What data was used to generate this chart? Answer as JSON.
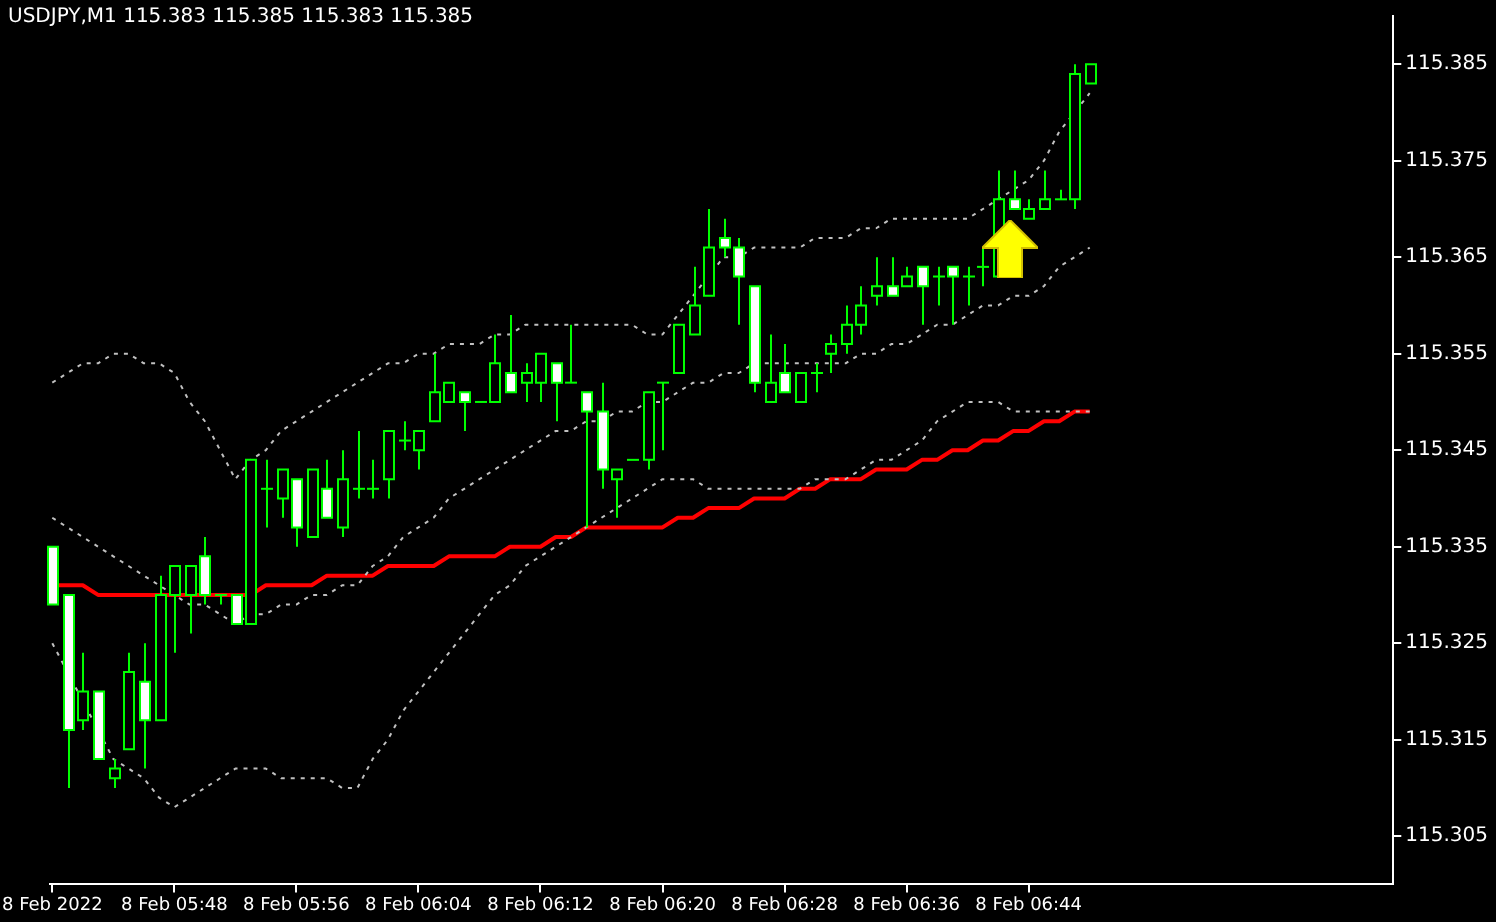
{
  "chart_data": {
    "type": "candlestick",
    "title": "USDJPY,M1 115.383 115.385 115.383 115.385",
    "categories": [
      "8 Feb 2022",
      null,
      null,
      null,
      null,
      null,
      null,
      null,
      "8 Feb 05:48",
      null,
      null,
      null,
      null,
      null,
      null,
      null,
      "8 Feb 05:56",
      null,
      null,
      null,
      null,
      null,
      null,
      null,
      "8 Feb 06:04",
      null,
      null,
      null,
      null,
      null,
      null,
      null,
      "8 Feb 06:12",
      null,
      null,
      null,
      null,
      null,
      null,
      null,
      "8 Feb 06:20",
      null,
      null,
      null,
      null,
      null,
      null,
      null,
      "8 Feb 06:28",
      null,
      null,
      null,
      null,
      null,
      null,
      null,
      "8 Feb 06:36",
      null,
      null,
      null,
      null,
      null,
      null,
      null,
      "8 Feb 06:44",
      null,
      null,
      null,
      null
    ],
    "color": "#00ff00",
    "colors": [
      "#ffffff",
      "#ffffff",
      "#000000",
      "#ffffff",
      "#000000",
      "#000000",
      "#ffffff",
      "#000000",
      "#000000",
      "#000000",
      "#ffffff",
      "#00ff00",
      "#ffffff",
      "#000000",
      "#00ff00",
      "#000000",
      "#ffffff",
      "#000000",
      "#ffffff",
      "#000000",
      "#00ff00",
      "#00ff00",
      "#000000",
      "#00ff00",
      "#000000",
      "#000000",
      "#000000",
      "#ffffff",
      "#00ff00",
      "#000000",
      "#ffffff",
      "#000000",
      "#000000",
      "#ffffff",
      "#00ff00",
      "#ffffff",
      "#ffffff",
      "#000000",
      "#00ff00",
      "#000000",
      "#00ff00",
      "#000000",
      "#000000",
      "#000000",
      "#ffffff",
      "#ffffff",
      "#ffffff",
      "#000000",
      "#ffffff",
      "#000000",
      "#00ff00",
      "#000000",
      "#000000",
      "#000000",
      "#000000",
      "#ffffff",
      "#000000",
      "#ffffff",
      "#00ff00",
      "#ffffff",
      "#00ff00",
      "#00ff00",
      "#000000",
      "#ffffff",
      "#000000",
      "#000000",
      "#00ff00",
      "#000000",
      "#000000"
    ],
    "ohlc": [
      [
        115.335,
        115.335,
        115.329,
        115.329
      ],
      [
        115.33,
        115.33,
        115.31,
        115.316
      ],
      [
        115.317,
        115.324,
        115.316,
        115.32
      ],
      [
        115.32,
        115.32,
        115.313,
        115.313
      ],
      [
        115.311,
        115.313,
        115.31,
        115.312
      ],
      [
        115.314,
        115.324,
        115.314,
        115.322
      ],
      [
        115.321,
        115.325,
        115.312,
        115.317
      ],
      [
        115.317,
        115.332,
        115.317,
        115.33
      ],
      [
        115.33,
        115.333,
        115.324,
        115.333
      ],
      [
        115.33,
        115.333,
        115.326,
        115.333
      ],
      [
        115.334,
        115.336,
        115.329,
        115.33
      ],
      [
        115.33,
        115.33,
        115.329,
        115.33
      ],
      [
        115.33,
        115.33,
        115.327,
        115.327
      ],
      [
        115.327,
        115.344,
        115.327,
        115.344
      ],
      [
        115.341,
        115.344,
        115.337,
        115.341
      ],
      [
        115.34,
        115.343,
        115.338,
        115.343
      ],
      [
        115.342,
        115.342,
        115.335,
        115.337
      ],
      [
        115.336,
        115.343,
        115.336,
        115.343
      ],
      [
        115.341,
        115.344,
        115.338,
        115.338
      ],
      [
        115.337,
        115.345,
        115.336,
        115.342
      ],
      [
        115.341,
        115.347,
        115.34,
        115.341
      ],
      [
        115.341,
        115.344,
        115.34,
        115.341
      ],
      [
        115.342,
        115.347,
        115.34,
        115.347
      ],
      [
        115.346,
        115.348,
        115.345,
        115.346
      ],
      [
        115.345,
        115.347,
        115.343,
        115.347
      ],
      [
        115.348,
        115.355,
        115.348,
        115.351
      ],
      [
        115.35,
        115.352,
        115.35,
        115.352
      ],
      [
        115.351,
        115.351,
        115.347,
        115.35
      ],
      [
        115.35,
        115.35,
        115.35,
        115.35
      ],
      [
        115.35,
        115.357,
        115.35,
        115.354
      ],
      [
        115.353,
        115.359,
        115.351,
        115.351
      ],
      [
        115.352,
        115.354,
        115.35,
        115.353
      ],
      [
        115.352,
        115.355,
        115.35,
        115.355
      ],
      [
        115.354,
        115.354,
        115.348,
        115.352
      ],
      [
        115.352,
        115.358,
        115.352,
        115.352
      ],
      [
        115.351,
        115.351,
        115.337,
        115.349
      ],
      [
        115.349,
        115.352,
        115.341,
        115.343
      ],
      [
        115.342,
        115.343,
        115.338,
        115.343
      ],
      [
        115.344,
        115.344,
        115.344,
        115.344
      ],
      [
        115.344,
        115.351,
        115.343,
        115.351
      ],
      [
        115.352,
        115.352,
        115.345,
        115.352
      ],
      [
        115.353,
        115.358,
        115.353,
        115.358
      ],
      [
        115.357,
        115.364,
        115.357,
        115.36
      ],
      [
        115.361,
        115.37,
        115.361,
        115.366
      ],
      [
        115.367,
        115.369,
        115.365,
        115.366
      ],
      [
        115.366,
        115.367,
        115.358,
        115.363
      ],
      [
        115.362,
        115.362,
        115.351,
        115.352
      ],
      [
        115.35,
        115.357,
        115.35,
        115.352
      ],
      [
        115.353,
        115.356,
        115.351,
        115.351
      ],
      [
        115.35,
        115.353,
        115.35,
        115.353
      ],
      [
        115.353,
        115.354,
        115.351,
        115.353
      ],
      [
        115.355,
        115.357,
        115.353,
        115.356
      ],
      [
        115.356,
        115.36,
        115.355,
        115.358
      ],
      [
        115.358,
        115.362,
        115.357,
        115.36
      ],
      [
        115.361,
        115.365,
        115.36,
        115.362
      ],
      [
        115.362,
        115.365,
        115.361,
        115.361
      ],
      [
        115.362,
        115.364,
        115.362,
        115.363
      ],
      [
        115.364,
        115.364,
        115.358,
        115.362
      ],
      [
        115.363,
        115.364,
        115.36,
        115.363
      ],
      [
        115.364,
        115.364,
        115.358,
        115.363
      ],
      [
        115.363,
        115.364,
        115.36,
        115.363
      ],
      [
        115.364,
        115.366,
        115.362,
        115.364
      ],
      [
        115.363,
        115.374,
        115.363,
        115.371
      ],
      [
        115.371,
        115.374,
        115.37,
        115.37
      ],
      [
        115.369,
        115.371,
        115.369,
        115.37
      ],
      [
        115.37,
        115.374,
        115.37,
        115.371
      ],
      [
        115.371,
        115.372,
        115.371,
        115.371
      ],
      [
        115.371,
        115.385,
        115.37,
        115.384
      ],
      [
        115.383,
        115.385,
        115.383,
        115.385
      ]
    ],
    "series": [
      {
        "type": "line",
        "color": "#c0c0c0",
        "line_style": "dotted",
        "values": [
          115.352,
          115.353,
          115.354,
          115.354,
          115.355,
          115.355,
          115.354,
          115.354,
          115.353,
          115.35,
          115.348,
          115.345,
          115.342,
          115.344,
          115.345,
          115.347,
          115.348,
          115.349,
          115.35,
          115.351,
          115.352,
          115.353,
          115.354,
          115.354,
          115.355,
          115.355,
          115.356,
          115.356,
          115.356,
          115.357,
          115.357,
          115.358,
          115.358,
          115.358,
          115.358,
          115.358,
          115.358,
          115.358,
          115.358,
          115.357,
          115.357,
          115.359,
          115.361,
          115.363,
          115.365,
          115.365,
          115.366,
          115.366,
          115.366,
          115.366,
          115.367,
          115.367,
          115.367,
          115.368,
          115.368,
          115.369,
          115.369,
          115.369,
          115.369,
          115.369,
          115.369,
          115.37,
          115.371,
          115.372,
          115.373,
          115.375,
          115.378,
          115.38,
          115.382
        ]
      },
      {
        "type": "line",
        "color": "#c0c0c0",
        "line_style": "dotted",
        "values": [
          115.338,
          115.337,
          115.336,
          115.335,
          115.334,
          115.333,
          115.332,
          115.331,
          115.33,
          115.329,
          115.329,
          115.328,
          115.327,
          115.328,
          115.328,
          115.329,
          115.329,
          115.33,
          115.33,
          115.331,
          115.331,
          115.333,
          115.334,
          115.336,
          115.337,
          115.338,
          115.34,
          115.341,
          115.342,
          115.343,
          115.344,
          115.345,
          115.346,
          115.347,
          115.347,
          115.348,
          115.348,
          115.349,
          115.349,
          115.35,
          115.35,
          115.351,
          115.352,
          115.352,
          115.353,
          115.353,
          115.354,
          115.354,
          115.354,
          115.354,
          115.354,
          115.354,
          115.354,
          115.355,
          115.355,
          115.356,
          115.356,
          115.357,
          115.358,
          115.358,
          115.359,
          115.36,
          115.36,
          115.361,
          115.361,
          115.362,
          115.364,
          115.365,
          115.366
        ]
      },
      {
        "type": "line",
        "color": "#c0c0c0",
        "line_style": "dotted",
        "values": [
          115.325,
          115.322,
          115.319,
          115.316,
          115.313,
          115.312,
          115.311,
          115.309,
          115.308,
          115.309,
          115.31,
          115.311,
          115.312,
          115.312,
          115.312,
          115.311,
          115.311,
          115.311,
          115.311,
          115.31,
          115.31,
          115.313,
          115.315,
          115.318,
          115.32,
          115.322,
          115.324,
          115.326,
          115.328,
          115.33,
          115.331,
          115.333,
          115.334,
          115.335,
          115.336,
          115.337,
          115.338,
          115.339,
          115.34,
          115.341,
          115.342,
          115.342,
          115.342,
          115.341,
          115.341,
          115.341,
          115.341,
          115.341,
          115.341,
          115.341,
          115.342,
          115.342,
          115.342,
          115.343,
          115.344,
          115.344,
          115.345,
          115.346,
          115.348,
          115.349,
          115.35,
          115.35,
          115.35,
          115.349,
          115.349,
          115.349,
          115.349,
          115.349,
          115.349
        ]
      },
      {
        "type": "line",
        "color": "#ff0000",
        "line_style": "solid",
        "values": [
          115.331,
          115.331,
          115.331,
          115.33,
          115.33,
          115.33,
          115.33,
          115.33,
          115.33,
          115.33,
          115.33,
          115.33,
          115.33,
          115.33,
          115.331,
          115.331,
          115.331,
          115.331,
          115.332,
          115.332,
          115.332,
          115.332,
          115.333,
          115.333,
          115.333,
          115.333,
          115.334,
          115.334,
          115.334,
          115.334,
          115.335,
          115.335,
          115.335,
          115.336,
          115.336,
          115.337,
          115.337,
          115.337,
          115.337,
          115.337,
          115.337,
          115.338,
          115.338,
          115.339,
          115.339,
          115.339,
          115.34,
          115.34,
          115.34,
          115.341,
          115.341,
          115.342,
          115.342,
          115.342,
          115.343,
          115.343,
          115.343,
          115.344,
          115.344,
          115.345,
          115.345,
          115.346,
          115.346,
          115.347,
          115.347,
          115.348,
          115.348,
          115.349,
          115.349
        ]
      }
    ],
    "ylim": [
      115.3,
      115.39
    ],
    "yticks": [
      115.305,
      115.315,
      115.325,
      115.335,
      115.345,
      115.355,
      115.365,
      115.375,
      115.385
    ],
    "marker": "none",
    "grid": false,
    "legend": false
  }
}
